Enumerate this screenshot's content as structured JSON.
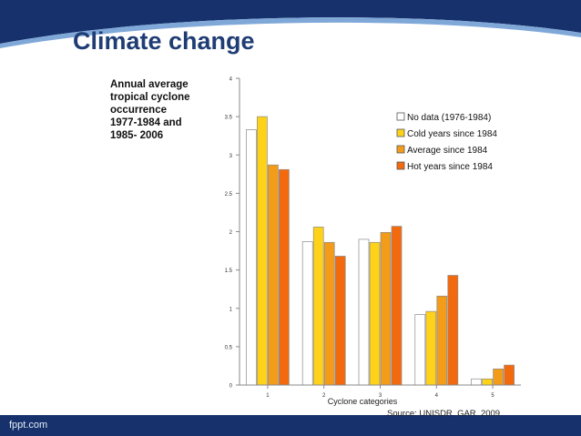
{
  "slide": {
    "title": "Climate change",
    "chart_description": "Annual average\ntropical cyclone\noccurrence\n1977-1984 and\n1985- 2006",
    "source": "Source: UNISDR, GAR, 2009",
    "footer_brand": "fppt.com"
  },
  "colors": {
    "header_blue": "#16316b",
    "title_blue": "#1f3d74",
    "footer_blue": "#16316b"
  },
  "chart_data": {
    "type": "bar",
    "title": "Annual average tropical cyclone occurrence 1977-1984 and 1985- 2006",
    "xlabel": "Cyclone categories",
    "ylabel": "",
    "categories": [
      "1",
      "2",
      "3",
      "4",
      "5"
    ],
    "ylim": [
      0,
      4
    ],
    "yticks": [
      0,
      0.5,
      1,
      1.5,
      2,
      2.5,
      3,
      3.5,
      4
    ],
    "grid": false,
    "legend_position": "top-right",
    "series": [
      {
        "name": "No data (1976-1984)",
        "color": "#ffffff",
        "values": [
          3.33,
          1.87,
          1.9,
          0.92,
          0.08
        ]
      },
      {
        "name": "Cold years since 1984",
        "color": "#ffd21a",
        "values": [
          3.5,
          2.06,
          1.86,
          0.96,
          0.08
        ]
      },
      {
        "name": "Average since 1984",
        "color": "#f39c1a",
        "values": [
          2.87,
          1.86,
          1.99,
          1.16,
          0.21
        ]
      },
      {
        "name": "Hot years since 1984",
        "color": "#f36a0e",
        "values": [
          2.81,
          1.68,
          2.07,
          1.43,
          0.26
        ]
      }
    ]
  }
}
